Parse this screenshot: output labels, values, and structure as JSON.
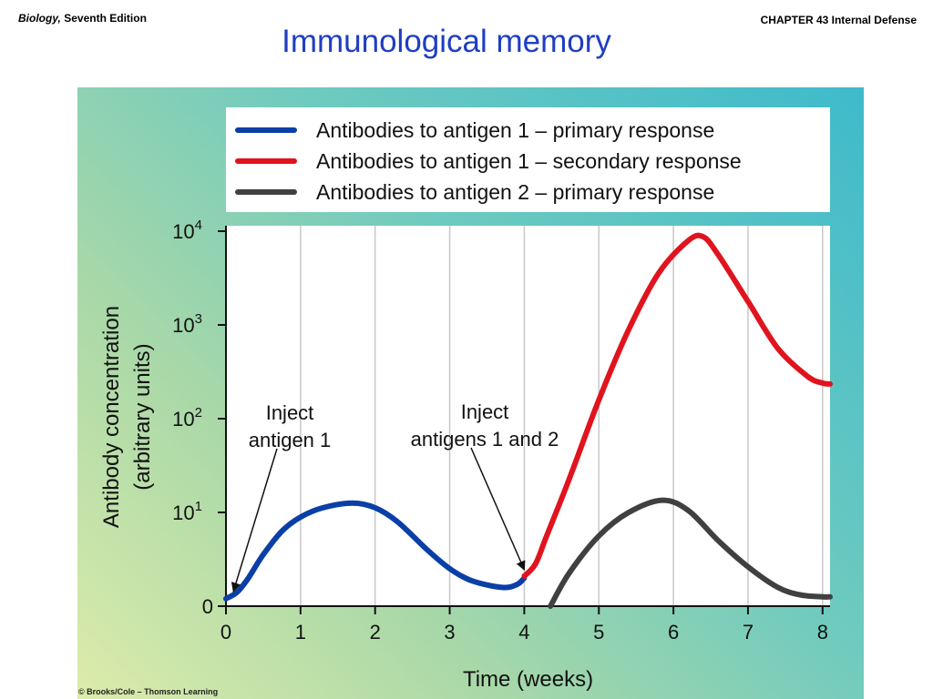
{
  "header": {
    "book_title": "Biology,",
    "edition": " Seventh Edition",
    "chapter": "CHAPTER 43 Internal Defense"
  },
  "slide_title": "Immunological memory",
  "credit": "© Brooks/Cole – Thomson Learning",
  "colors": {
    "blue": "#0a3fa6",
    "red": "#e0141e",
    "gray": "#404040",
    "title": "#1f3ec2"
  },
  "chart_data": {
    "type": "line",
    "xlabel": "Time (weeks)",
    "ylabel": [
      "Antibody concentration",
      "(arbitrary units)"
    ],
    "x_ticks": [
      0,
      1,
      2,
      3,
      4,
      5,
      6,
      7,
      8
    ],
    "xlim": [
      0,
      8.1
    ],
    "y_scale": "log",
    "y_ticks": [
      {
        "base": "0",
        "exp": ""
      },
      {
        "base": "10",
        "exp": "1"
      },
      {
        "base": "10",
        "exp": "2"
      },
      {
        "base": "10",
        "exp": "3"
      },
      {
        "base": "10",
        "exp": "4"
      }
    ],
    "ylim_log10": [
      0,
      4
    ],
    "grid": "vertical",
    "legend_position": "top",
    "series": [
      {
        "name": "Antibodies to antigen 1 – primary response",
        "color": "#0a3fa6",
        "x": [
          0.0,
          0.15,
          0.3,
          0.5,
          0.75,
          1.0,
          1.3,
          1.7,
          2.0,
          2.3,
          2.7,
          3.0,
          3.3,
          3.7,
          3.9,
          4.0
        ],
        "y_log10": [
          0.08,
          0.15,
          0.3,
          0.55,
          0.8,
          0.95,
          1.05,
          1.1,
          1.05,
          0.9,
          0.6,
          0.4,
          0.27,
          0.2,
          0.23,
          0.3
        ]
      },
      {
        "name": "Antibodies to antigen 1 – secondary response",
        "color": "#e0141e",
        "x": [
          4.0,
          4.15,
          4.3,
          4.6,
          5.0,
          5.4,
          5.8,
          6.2,
          6.4,
          6.6,
          7.0,
          7.4,
          7.8,
          8.0,
          8.1
        ],
        "y_log10": [
          0.32,
          0.45,
          0.75,
          1.35,
          2.2,
          2.95,
          3.55,
          3.9,
          3.94,
          3.75,
          3.25,
          2.75,
          2.45,
          2.38,
          2.37
        ]
      },
      {
        "name": "Antibodies to antigen 2 – primary response",
        "color": "#404040",
        "x": [
          4.35,
          4.6,
          5.0,
          5.4,
          5.85,
          6.2,
          6.6,
          7.0,
          7.4,
          7.7,
          8.0,
          8.1
        ],
        "y_log10": [
          0.0,
          0.35,
          0.75,
          1.0,
          1.13,
          1.02,
          0.7,
          0.42,
          0.2,
          0.12,
          0.1,
          0.1
        ]
      }
    ],
    "annotations": [
      {
        "lines": [
          "Inject",
          "antigen 1"
        ],
        "target_x": 0.1,
        "target_y_log10": 0.1
      },
      {
        "lines": [
          "Inject",
          "antigens 1 and 2"
        ],
        "target_x": 4.0,
        "target_y_log10": 0.33
      }
    ]
  }
}
